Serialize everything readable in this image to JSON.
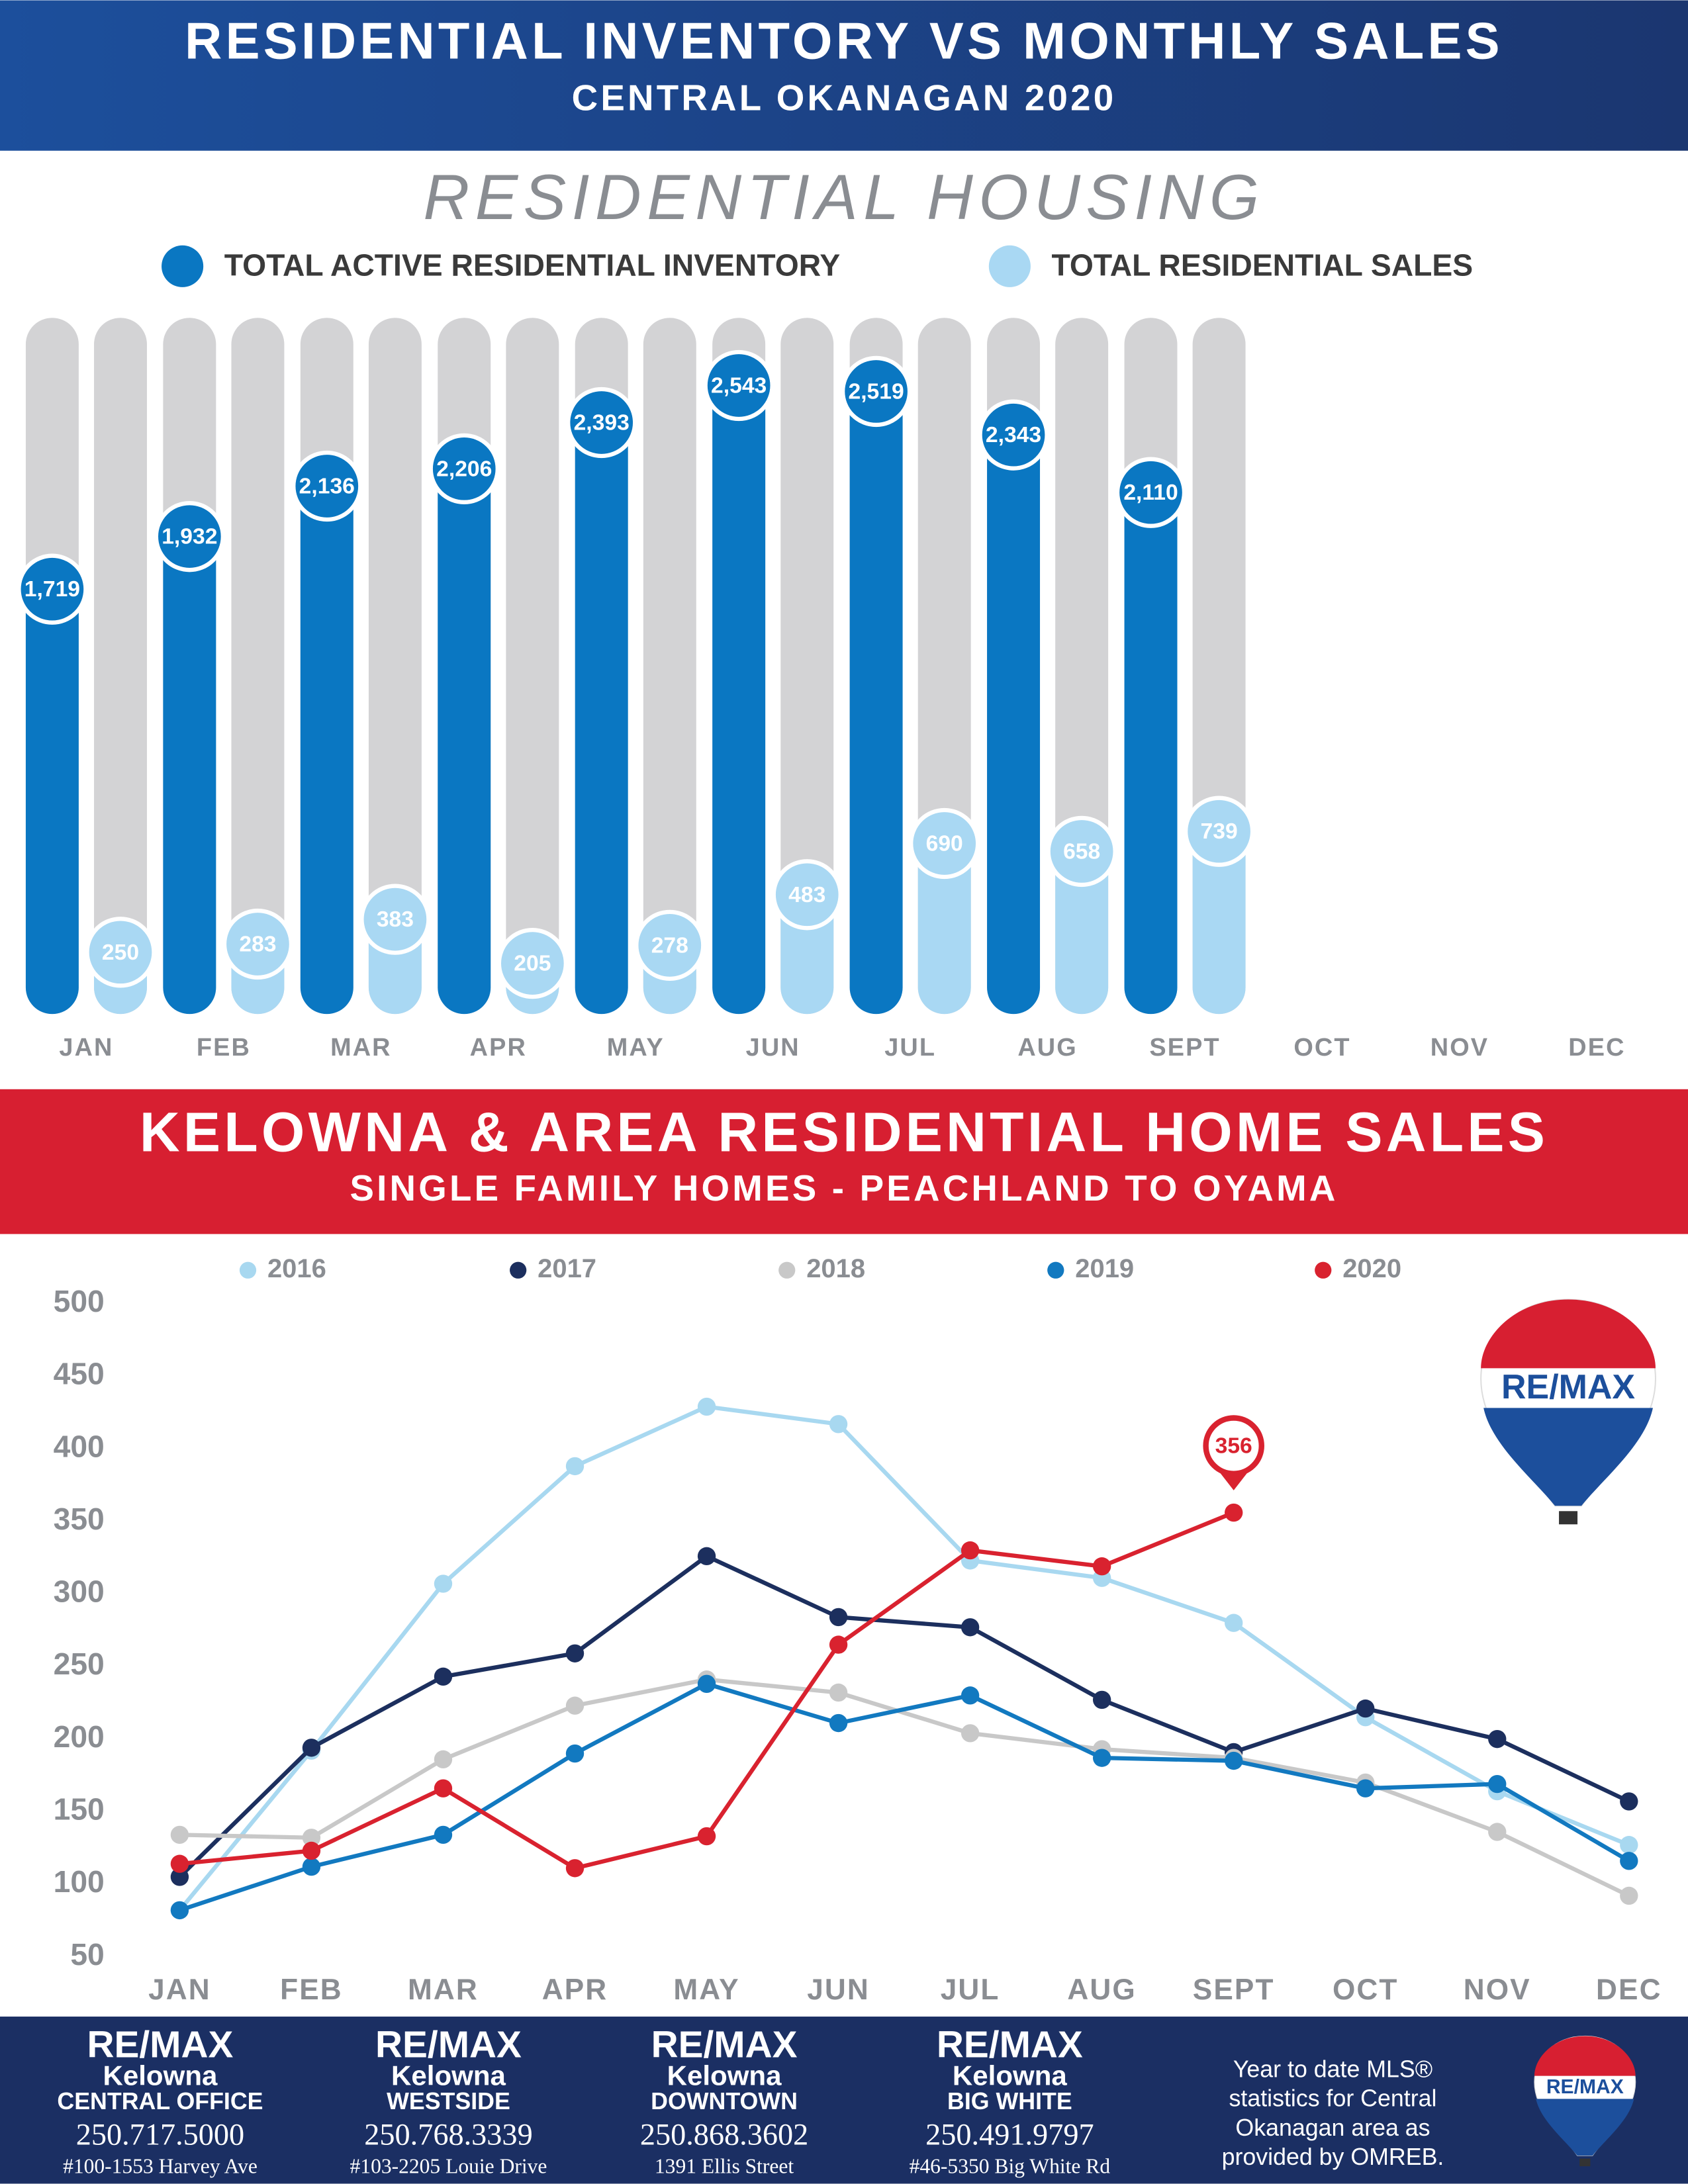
{
  "header": {
    "title": "RESIDENTIAL INVENTORY VS MONTHLY SALES",
    "subtitle": "CENTRAL OKANAGAN 2020"
  },
  "chart_data": [
    {
      "type": "bar",
      "title": "RESIDENTIAL HOUSING",
      "categories": [
        "JAN",
        "FEB",
        "MAR",
        "APR",
        "MAY",
        "JUN",
        "JUL",
        "AUG",
        "SEPT",
        "OCT",
        "NOV",
        "DEC"
      ],
      "series": [
        {
          "name": "TOTAL ACTIVE RESIDENTIAL INVENTORY",
          "color": "#0a77c2",
          "values": [
            1719,
            1932,
            2136,
            2206,
            2393,
            2543,
            2519,
            2343,
            2110,
            null,
            null,
            null
          ],
          "value_labels": [
            "1,719",
            "1,932",
            "2,136",
            "2,206",
            "2,393",
            "2,543",
            "2,519",
            "2,343",
            "2,110",
            null,
            null,
            null
          ]
        },
        {
          "name": "TOTAL RESIDENTIAL SALES",
          "color": "#a9d8f3",
          "values": [
            250,
            283,
            383,
            205,
            278,
            483,
            690,
            658,
            739,
            null,
            null,
            null
          ]
        }
      ],
      "ylim": [
        0,
        2800
      ]
    },
    {
      "type": "line",
      "title": "KELOWNA & AREA RESIDENTIAL HOME SALES",
      "subtitle": "SINGLE FAMILY HOMES - PEACHLAND TO OYAMA",
      "categories": [
        "JAN",
        "FEB",
        "MAR",
        "APR",
        "MAY",
        "JUN",
        "JUL",
        "AUG",
        "SEPT",
        "OCT",
        "NOV",
        "DEC"
      ],
      "series": [
        {
          "name": "2016",
          "color": "#a8d8f0",
          "values": [
            82,
            192,
            307,
            388,
            429,
            417,
            323,
            311,
            280,
            215,
            164,
            127
          ]
        },
        {
          "name": "2017",
          "color": "#1c2f5e",
          "values": [
            105,
            194,
            243,
            259,
            326,
            284,
            277,
            227,
            191,
            221,
            200,
            157
          ]
        },
        {
          "name": "2018",
          "color": "#c8c8c8",
          "values": [
            134,
            132,
            186,
            223,
            241,
            232,
            204,
            193,
            187,
            170,
            136,
            92
          ]
        },
        {
          "name": "2019",
          "color": "#1279c0",
          "values": [
            82,
            112,
            134,
            190,
            238,
            211,
            230,
            187,
            185,
            166,
            169,
            116
          ]
        },
        {
          "name": "2020",
          "color": "#d9222f",
          "values": [
            114,
            123,
            166,
            111,
            133,
            265,
            330,
            319,
            356,
            null,
            null,
            null
          ]
        }
      ],
      "ylim": [
        50,
        500
      ],
      "yticks": [
        50,
        100,
        150,
        200,
        250,
        300,
        350,
        400,
        450,
        500
      ],
      "grid": false
    }
  ],
  "logo": "RE/MAX",
  "footer": {
    "offices": [
      {
        "brand": "RE/MAX",
        "city": "Kelowna",
        "office": "CENTRAL OFFICE",
        "phone": "250.717.5000",
        "address": "#100-1553 Harvey Ave"
      },
      {
        "brand": "RE/MAX",
        "city": "Kelowna",
        "office": "WESTSIDE",
        "phone": "250.768.3339",
        "address": "#103-2205 Louie Drive"
      },
      {
        "brand": "RE/MAX",
        "city": "Kelowna",
        "office": "DOWNTOWN",
        "phone": "250.868.3602",
        "address": "1391 Ellis Street"
      },
      {
        "brand": "RE/MAX",
        "city": "Kelowna",
        "office": "BIG WHITE",
        "phone": "250.491.9797",
        "address": "#46-5350 Big White Rd"
      }
    ],
    "note": [
      "Year to date MLS®",
      "statistics for Central",
      "Okanagan area as",
      "provided by OMREB."
    ]
  }
}
